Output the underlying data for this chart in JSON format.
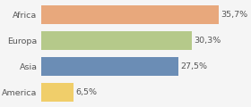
{
  "categories": [
    "Africa",
    "Europa",
    "Asia",
    "America"
  ],
  "values": [
    35.7,
    30.3,
    27.5,
    6.5
  ],
  "labels": [
    "35,7%",
    "30,3%",
    "27,5%",
    "6,5%"
  ],
  "bar_colors": [
    "#e8a87c",
    "#b5c98a",
    "#6b8db5",
    "#f0ce6a"
  ],
  "background_color": "#f5f5f5",
  "xlim": [
    0,
    41
  ],
  "label_fontsize": 6.8,
  "tick_fontsize": 6.8,
  "bar_height": 0.72
}
